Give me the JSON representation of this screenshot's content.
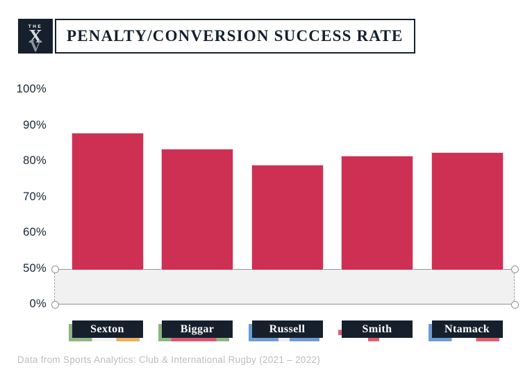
{
  "header": {
    "logo": {
      "the": "THE",
      "monogram_top": "X",
      "monogram_bottom": "V",
      "name": "The XV"
    },
    "title": "PENALTY/CONVERSION SUCCESS RATE"
  },
  "chart_data": {
    "type": "bar",
    "title": "PENALTY/CONVERSION SUCCESS RATE",
    "categories": [
      "Sexton",
      "Biggar",
      "Russell",
      "Smith",
      "Ntamack"
    ],
    "values": [
      88,
      83.5,
      79,
      81.5,
      82.5
    ],
    "unit": "%",
    "nations": [
      "ireland",
      "wales",
      "scotland",
      "england",
      "france"
    ],
    "xlabel": "",
    "ylabel": "",
    "ylim": [
      0,
      100
    ],
    "y_axis": {
      "tick_values": [
        100,
        90,
        80,
        70,
        60,
        50,
        0
      ],
      "tick_labels": [
        "100%",
        "90%",
        "80%",
        "70%",
        "60%",
        "50%",
        "0%"
      ],
      "axis_break_between": [
        0,
        50
      ]
    },
    "grid": false,
    "legend": "none",
    "bar_color": "#ce3053"
  },
  "colors": {
    "navy": "#16202d",
    "bar": "#ce3053",
    "bar_border": "#f2cdd6",
    "band_fill": "#f1f1f2",
    "band_line": "#8e959e",
    "tick_text": "#1b2531",
    "footer_text": "#bdbdbd",
    "flags": {
      "ireland": [
        "#8fb582",
        "#f4f4f1",
        "#efae62"
      ],
      "wales": [
        "#8fb582",
        "#dd5471"
      ],
      "scotland": [
        "#6f9bd3",
        "#e9eef6"
      ],
      "england": [
        "#fdfdfd",
        "#e45c6d"
      ],
      "france": [
        "#6f9bd3",
        "#fdfdfd",
        "#e45c6d"
      ]
    }
  },
  "footer": {
    "source": "Data from Sports Analytics: Club & International Rugby (2021 – 2022)"
  }
}
